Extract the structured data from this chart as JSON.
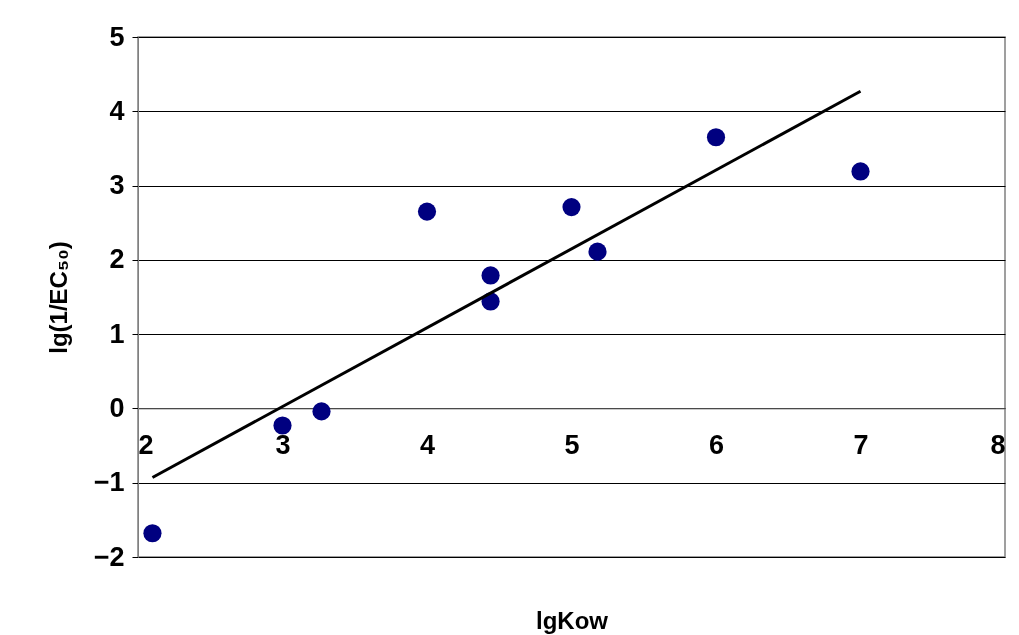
{
  "chart_data": {
    "type": "scatter",
    "xlabel": "lgKow",
    "ylabel": "lg(1/EC₅₀)",
    "xlim": [
      2,
      8
    ],
    "xticks": [
      2,
      3,
      4,
      5,
      6,
      7,
      8
    ],
    "ylim": [
      -2,
      5
    ],
    "yticks": [
      -2,
      -1,
      0,
      1,
      2,
      3,
      4,
      5
    ],
    "grid": "y",
    "series": [
      {
        "marker": "circle",
        "color": "#000080",
        "x": [
          2.1,
          3.0,
          3.27,
          4.0,
          4.44,
          4.44,
          5.0,
          5.18,
          6.0,
          7.0
        ],
        "values": [
          -1.68,
          -0.23,
          -0.04,
          2.65,
          1.79,
          1.44,
          2.71,
          2.11,
          3.65,
          3.19
        ]
      },
      {
        "type": "line",
        "color": "#000000",
        "line_style": "solid",
        "x": [
          2.1,
          7.0
        ],
        "values": [
          -0.93,
          4.27
        ]
      }
    ]
  }
}
